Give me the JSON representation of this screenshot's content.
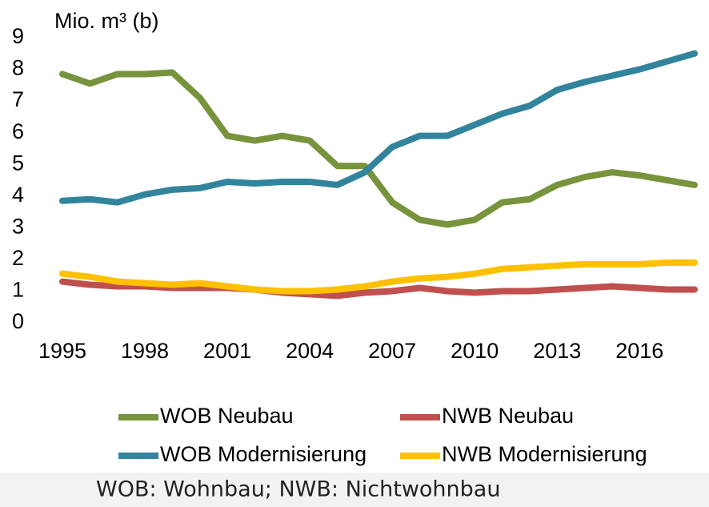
{
  "chart_data": {
    "type": "line",
    "y_label": "Mio. m³ (b)",
    "note": "WOB: Wohnbau; NWB: Nichtwohnbau",
    "x": [
      1995,
      1996,
      1997,
      1998,
      1999,
      2000,
      2001,
      2002,
      2003,
      2004,
      2005,
      2006,
      2007,
      2008,
      2009,
      2010,
      2011,
      2012,
      2013,
      2014,
      2015,
      2016,
      2017,
      2018
    ],
    "xlim": [
      1995,
      2018
    ],
    "xticks": [
      1995,
      1998,
      2001,
      2004,
      2007,
      2010,
      2013,
      2016
    ],
    "ylim": [
      0,
      9
    ],
    "yticks": [
      0,
      1,
      2,
      3,
      4,
      5,
      6,
      7,
      8,
      9
    ],
    "grid": false,
    "series": [
      {
        "name": "WOB Neubau",
        "color": "#77933c",
        "values": [
          7.85,
          7.55,
          7.85,
          7.85,
          7.9,
          7.1,
          5.9,
          5.75,
          5.9,
          5.75,
          4.95,
          4.95,
          3.8,
          3.25,
          3.1,
          3.25,
          3.8,
          3.9,
          4.35,
          4.6,
          4.75,
          4.65,
          4.5,
          4.35
        ]
      },
      {
        "name": "NWB Neubau",
        "color": "#c0504d",
        "values": [
          1.3,
          1.2,
          1.15,
          1.15,
          1.1,
          1.1,
          1.1,
          1.05,
          0.95,
          0.9,
          0.85,
          0.95,
          1.0,
          1.1,
          1.0,
          0.95,
          1.0,
          1.0,
          1.05,
          1.1,
          1.15,
          1.1,
          1.05,
          1.05
        ]
      },
      {
        "name": "WOB Modernisierung",
        "color": "#31849b",
        "values": [
          3.85,
          3.9,
          3.8,
          4.05,
          4.2,
          4.25,
          4.45,
          4.4,
          4.45,
          4.45,
          4.35,
          4.75,
          5.55,
          5.9,
          5.9,
          6.25,
          6.6,
          6.85,
          7.35,
          7.6,
          7.8,
          8.0,
          8.25,
          8.5
        ]
      },
      {
        "name": "NWB Modernisierung",
        "color": "#ffc000",
        "values": [
          1.55,
          1.45,
          1.3,
          1.25,
          1.2,
          1.25,
          1.15,
          1.05,
          1.0,
          1.0,
          1.05,
          1.15,
          1.3,
          1.4,
          1.45,
          1.55,
          1.7,
          1.75,
          1.8,
          1.85,
          1.85,
          1.85,
          1.9,
          1.9
        ]
      }
    ]
  }
}
